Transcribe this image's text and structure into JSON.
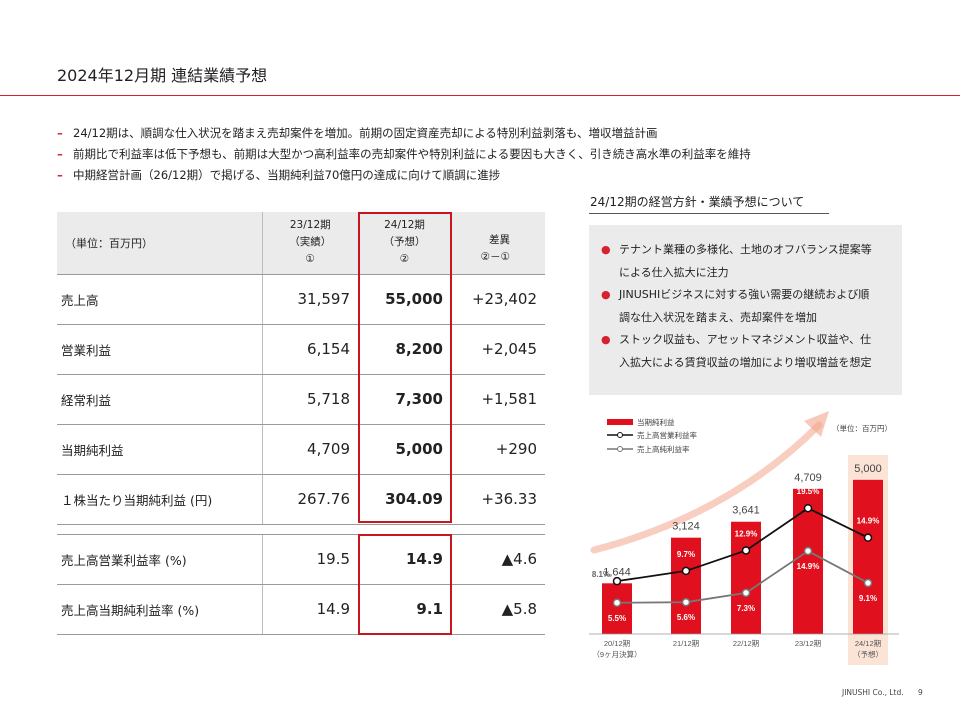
{
  "page": {
    "title": "2024年12月期 連結業績予想",
    "footer_company": "JINUSHI Co., Ltd.",
    "page_number": "9"
  },
  "bullets": [
    "24/12期は、順調な仕入状況を踏まえ売却案件を増加。前期の固定資産売却による特別利益剥落も、増収増益計画",
    "前期比で利益率は低下予想も、前期は大型かつ高利益率の売却案件や特別利益による要因も大きく、引き続き高水準の利益率を維持",
    "中期経営計画（26/12期）で掲げる、当期純利益70億円の達成に向けて順調に進捗"
  ],
  "table": {
    "unit_label": "（単位：百万円）",
    "col_a": {
      "line1": "23/12期",
      "line2": "（実績）",
      "line3": "①"
    },
    "col_b": {
      "line1": "24/12期",
      "line2": "（予想）",
      "line3": "②"
    },
    "col_c": {
      "line1": "差異",
      "line2": "②－①"
    },
    "rows": [
      {
        "label": "売上高",
        "a": "31,597",
        "b": "55,000",
        "c": "+23,402"
      },
      {
        "label": "営業利益",
        "a": "6,154",
        "b": "8,200",
        "c": "+2,045"
      },
      {
        "label": "経常利益",
        "a": "5,718",
        "b": "7,300",
        "c": "+1,581"
      },
      {
        "label": "当期純利益",
        "a": "4,709",
        "b": "5,000",
        "c": "+290"
      },
      {
        "label": "１株当たり当期純利益 (円)",
        "a": "267.76",
        "b": "304.09",
        "c": "+36.33"
      }
    ],
    "ratio_rows": [
      {
        "label": "売上高営業利益率 (%)",
        "a": "19.5",
        "b": "14.9",
        "c": "▲4.6"
      },
      {
        "label": "売上高当期純利益率 (%)",
        "a": "14.9",
        "b": "9.1",
        "c": "▲5.8"
      }
    ]
  },
  "policy": {
    "title": "24/12期の経営方針・業績予想について",
    "points": [
      [
        "テナント業種の多様化、土地のオフバランス提案等",
        "による仕入拡大に注力"
      ],
      [
        "JINUSHIビジネスに対する強い需要の継続および順",
        "調な仕入状況を踏まえ、売却案件を増加"
      ],
      [
        "ストック収益も、アセットマネジメント収益や、仕",
        "入拡大による賃貸収益の増加により増収増益を想定"
      ]
    ]
  },
  "chart_data": {
    "type": "bar",
    "unit": "（単位：百万円）",
    "legend": [
      "当期純利益",
      "売上高営業利益率",
      "売上高純利益率"
    ],
    "categories": [
      "20/12期",
      "21/12期",
      "22/12期",
      "23/12期",
      "24/12期"
    ],
    "category_sub": [
      "（9ヶ月決算）",
      "",
      "",
      "",
      "（予想）"
    ],
    "net_income": [
      1644,
      3124,
      3641,
      4709,
      5000
    ],
    "net_income_labels": [
      "1,644",
      "3,124",
      "3,641",
      "4,709",
      "5,000"
    ],
    "operating_margin": [
      8.1,
      9.7,
      12.9,
      19.5,
      14.9
    ],
    "operating_margin_labels": [
      "8.1%",
      "9.7%",
      "12.9%",
      "19.5%",
      "14.9%"
    ],
    "net_margin": [
      5.5,
      5.6,
      7.3,
      14.9,
      9.1
    ],
    "net_margin_labels": [
      "5.5%",
      "5.6%",
      "7.3%",
      "14.9%",
      "9.1%"
    ],
    "colors": {
      "bar": "#e0101e",
      "highlight_bg": "#fbe3d6",
      "op_line": "#111111",
      "net_line": "#777777",
      "arrow": "#f2a58c"
    }
  }
}
